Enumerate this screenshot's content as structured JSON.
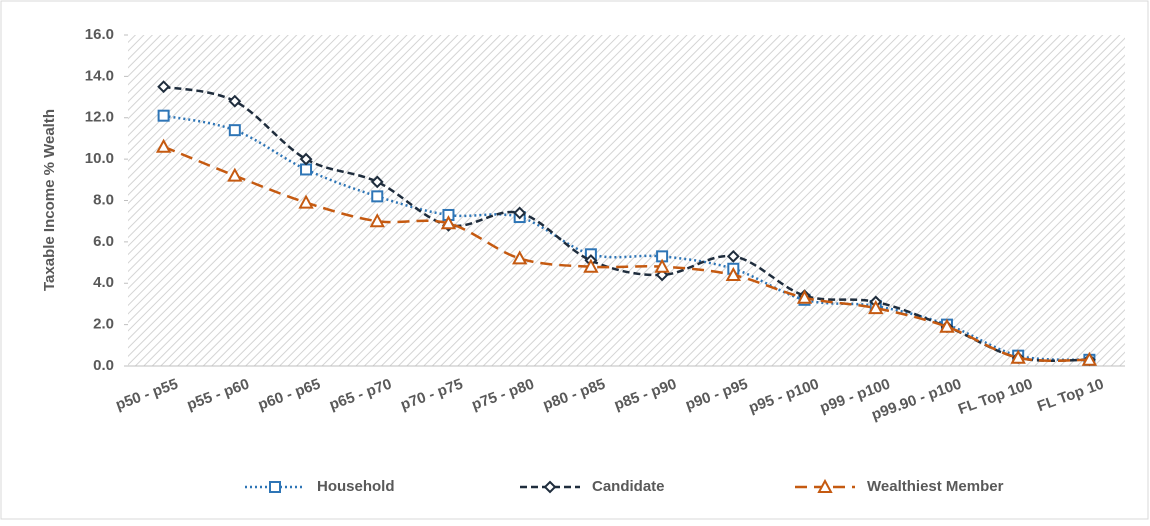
{
  "chart_data": {
    "type": "line",
    "y_label": "Taxable Income % Wealth",
    "categories": [
      "p50 - p55",
      "p55 - p60",
      "p60 - p65",
      "p65 - p70",
      "p70 - p75",
      "p75 - p80",
      "p80 - p85",
      "p85 - p90",
      "p90 - p95",
      "p95 - p100",
      "p99 - p100",
      "p99.90 - p100",
      "FL Top 100",
      "FL Top 10"
    ],
    "series": [
      {
        "name": "Household",
        "color": "#2e75b6",
        "marker": "square",
        "dash": "dotted",
        "values": [
          12.1,
          11.4,
          9.5,
          8.2,
          7.3,
          7.2,
          5.4,
          5.3,
          4.7,
          3.2,
          2.9,
          2.0,
          0.5,
          0.3
        ]
      },
      {
        "name": "Candidate",
        "color": "#1f2d3d",
        "marker": "diamond",
        "dash": "dashed",
        "values": [
          13.5,
          12.8,
          10.0,
          8.9,
          6.8,
          7.4,
          5.1,
          4.4,
          5.3,
          3.4,
          3.1,
          1.9,
          0.4,
          0.3
        ]
      },
      {
        "name": "Wealthiest Member",
        "color": "#c55a11",
        "marker": "triangle",
        "dash": "long-dashed",
        "values": [
          10.6,
          9.2,
          7.9,
          7.0,
          6.9,
          5.2,
          4.8,
          4.8,
          4.4,
          3.3,
          2.8,
          1.9,
          0.4,
          0.3
        ]
      }
    ],
    "ylim": [
      0,
      16
    ],
    "yticks": [
      {
        "value": 0,
        "label": "0.0"
      },
      {
        "value": 2,
        "label": "2.0"
      },
      {
        "value": 4,
        "label": "4.0"
      },
      {
        "value": 6,
        "label": "6.0"
      },
      {
        "value": 8,
        "label": "8.0"
      },
      {
        "value": 10,
        "label": "10.0"
      },
      {
        "value": 12,
        "label": "12.0"
      },
      {
        "value": 14,
        "label": "14.0"
      },
      {
        "value": 16,
        "label": "16.0"
      }
    ],
    "legend": "bottom"
  }
}
